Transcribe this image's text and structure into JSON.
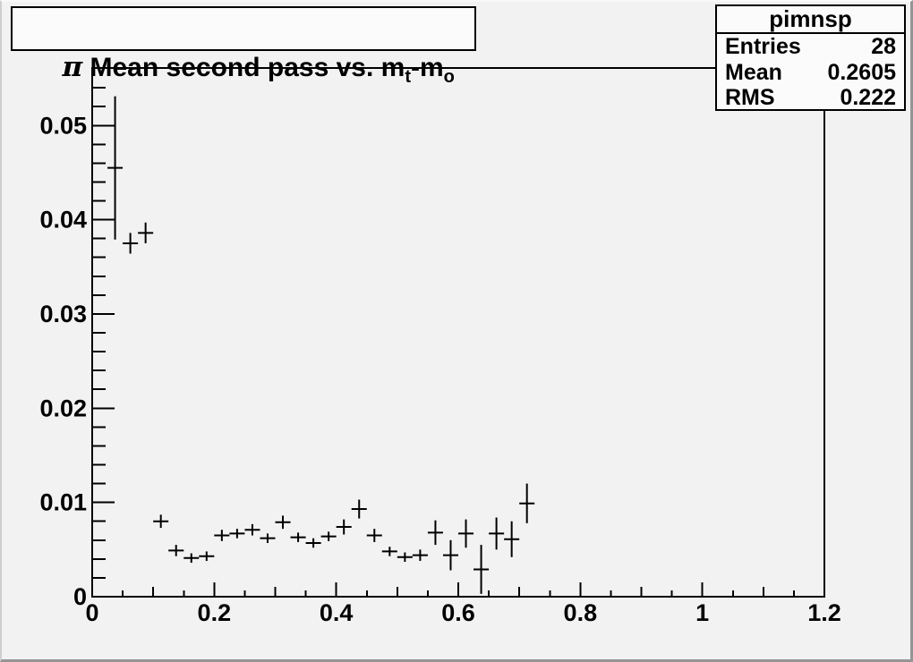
{
  "window": {
    "canvas_bg": "#f2f2f2",
    "box_bg": "#fbfbfb",
    "ink": "#000000"
  },
  "title": {
    "pi": "π",
    "text1": " Mean second pass vs. m",
    "sub1": "t",
    "text2": "-m",
    "sub2": "o"
  },
  "stats": {
    "title": "pimnsp",
    "rows": [
      {
        "label": "Entries",
        "value": "28"
      },
      {
        "label": "Mean",
        "value": "0.2605"
      },
      {
        "label": "RMS",
        "value": "0.222"
      }
    ]
  },
  "chart_data": {
    "type": "scatter",
    "title": "π Mean second pass vs. m_t-m_o",
    "xlabel": "",
    "ylabel": "",
    "grid": false,
    "legend": false,
    "xlim": [
      0,
      1.2
    ],
    "ylim": [
      0,
      0.0561
    ],
    "marker_style": "plus-cross-with-error-bars",
    "bin_half_width": 0.0125,
    "x_ticks": {
      "major": [
        0,
        0.2,
        0.4,
        0.6,
        0.8,
        1,
        1.2
      ],
      "major_labels": [
        "0",
        "0.2",
        "0.4",
        "0.6",
        "0.8",
        "1",
        "1.2"
      ],
      "medium": [
        0.1,
        0.3,
        0.5,
        0.7,
        0.9,
        1.1
      ],
      "minor": [
        0.05,
        0.15,
        0.25,
        0.35,
        0.45,
        0.55,
        0.65,
        0.75,
        0.85,
        0.95,
        1.05,
        1.15
      ]
    },
    "y_ticks": {
      "major": [
        0,
        0.01,
        0.02,
        0.03,
        0.04,
        0.05
      ],
      "major_labels": [
        "0",
        "0.01",
        "0.02",
        "0.03",
        "0.04",
        "0.05"
      ],
      "minor": [
        0.002,
        0.004,
        0.006,
        0.008,
        0.012,
        0.014,
        0.016,
        0.018,
        0.022,
        0.024,
        0.026,
        0.028,
        0.032,
        0.034,
        0.036,
        0.038,
        0.042,
        0.044,
        0.046,
        0.048,
        0.052,
        0.054
      ]
    },
    "points": [
      {
        "x": 0.0375,
        "y": 0.0455,
        "ey": 0.0076
      },
      {
        "x": 0.0625,
        "y": 0.0375,
        "ey": 0.0011
      },
      {
        "x": 0.0875,
        "y": 0.0386,
        "ey": 0.0011
      },
      {
        "x": 0.1125,
        "y": 0.008,
        "ey": 0.0007
      },
      {
        "x": 0.1375,
        "y": 0.0049,
        "ey": 0.0006
      },
      {
        "x": 0.1625,
        "y": 0.0041,
        "ey": 0.0005
      },
      {
        "x": 0.1875,
        "y": 0.0043,
        "ey": 0.0005
      },
      {
        "x": 0.2125,
        "y": 0.0065,
        "ey": 0.0006
      },
      {
        "x": 0.2375,
        "y": 0.0067,
        "ey": 0.0005
      },
      {
        "x": 0.2625,
        "y": 0.0071,
        "ey": 0.0006
      },
      {
        "x": 0.2875,
        "y": 0.0062,
        "ey": 0.0005
      },
      {
        "x": 0.3125,
        "y": 0.0079,
        "ey": 0.0007
      },
      {
        "x": 0.3375,
        "y": 0.0063,
        "ey": 0.0005
      },
      {
        "x": 0.3625,
        "y": 0.0057,
        "ey": 0.0005
      },
      {
        "x": 0.3875,
        "y": 0.0064,
        "ey": 0.0005
      },
      {
        "x": 0.4125,
        "y": 0.0074,
        "ey": 0.0008
      },
      {
        "x": 0.4375,
        "y": 0.0093,
        "ey": 0.001
      },
      {
        "x": 0.4625,
        "y": 0.0065,
        "ey": 0.0007
      },
      {
        "x": 0.4875,
        "y": 0.0048,
        "ey": 0.0005
      },
      {
        "x": 0.5125,
        "y": 0.0042,
        "ey": 0.0005
      },
      {
        "x": 0.5375,
        "y": 0.0044,
        "ey": 0.0006
      },
      {
        "x": 0.5625,
        "y": 0.0068,
        "ey": 0.0013
      },
      {
        "x": 0.5875,
        "y": 0.0044,
        "ey": 0.0016
      },
      {
        "x": 0.6125,
        "y": 0.0067,
        "ey": 0.0015
      },
      {
        "x": 0.6375,
        "y": 0.0029,
        "ey": 0.0026
      },
      {
        "x": 0.6625,
        "y": 0.0067,
        "ey": 0.0017
      },
      {
        "x": 0.6875,
        "y": 0.0061,
        "ey": 0.0019
      },
      {
        "x": 0.7125,
        "y": 0.0099,
        "ey": 0.0021
      }
    ]
  }
}
